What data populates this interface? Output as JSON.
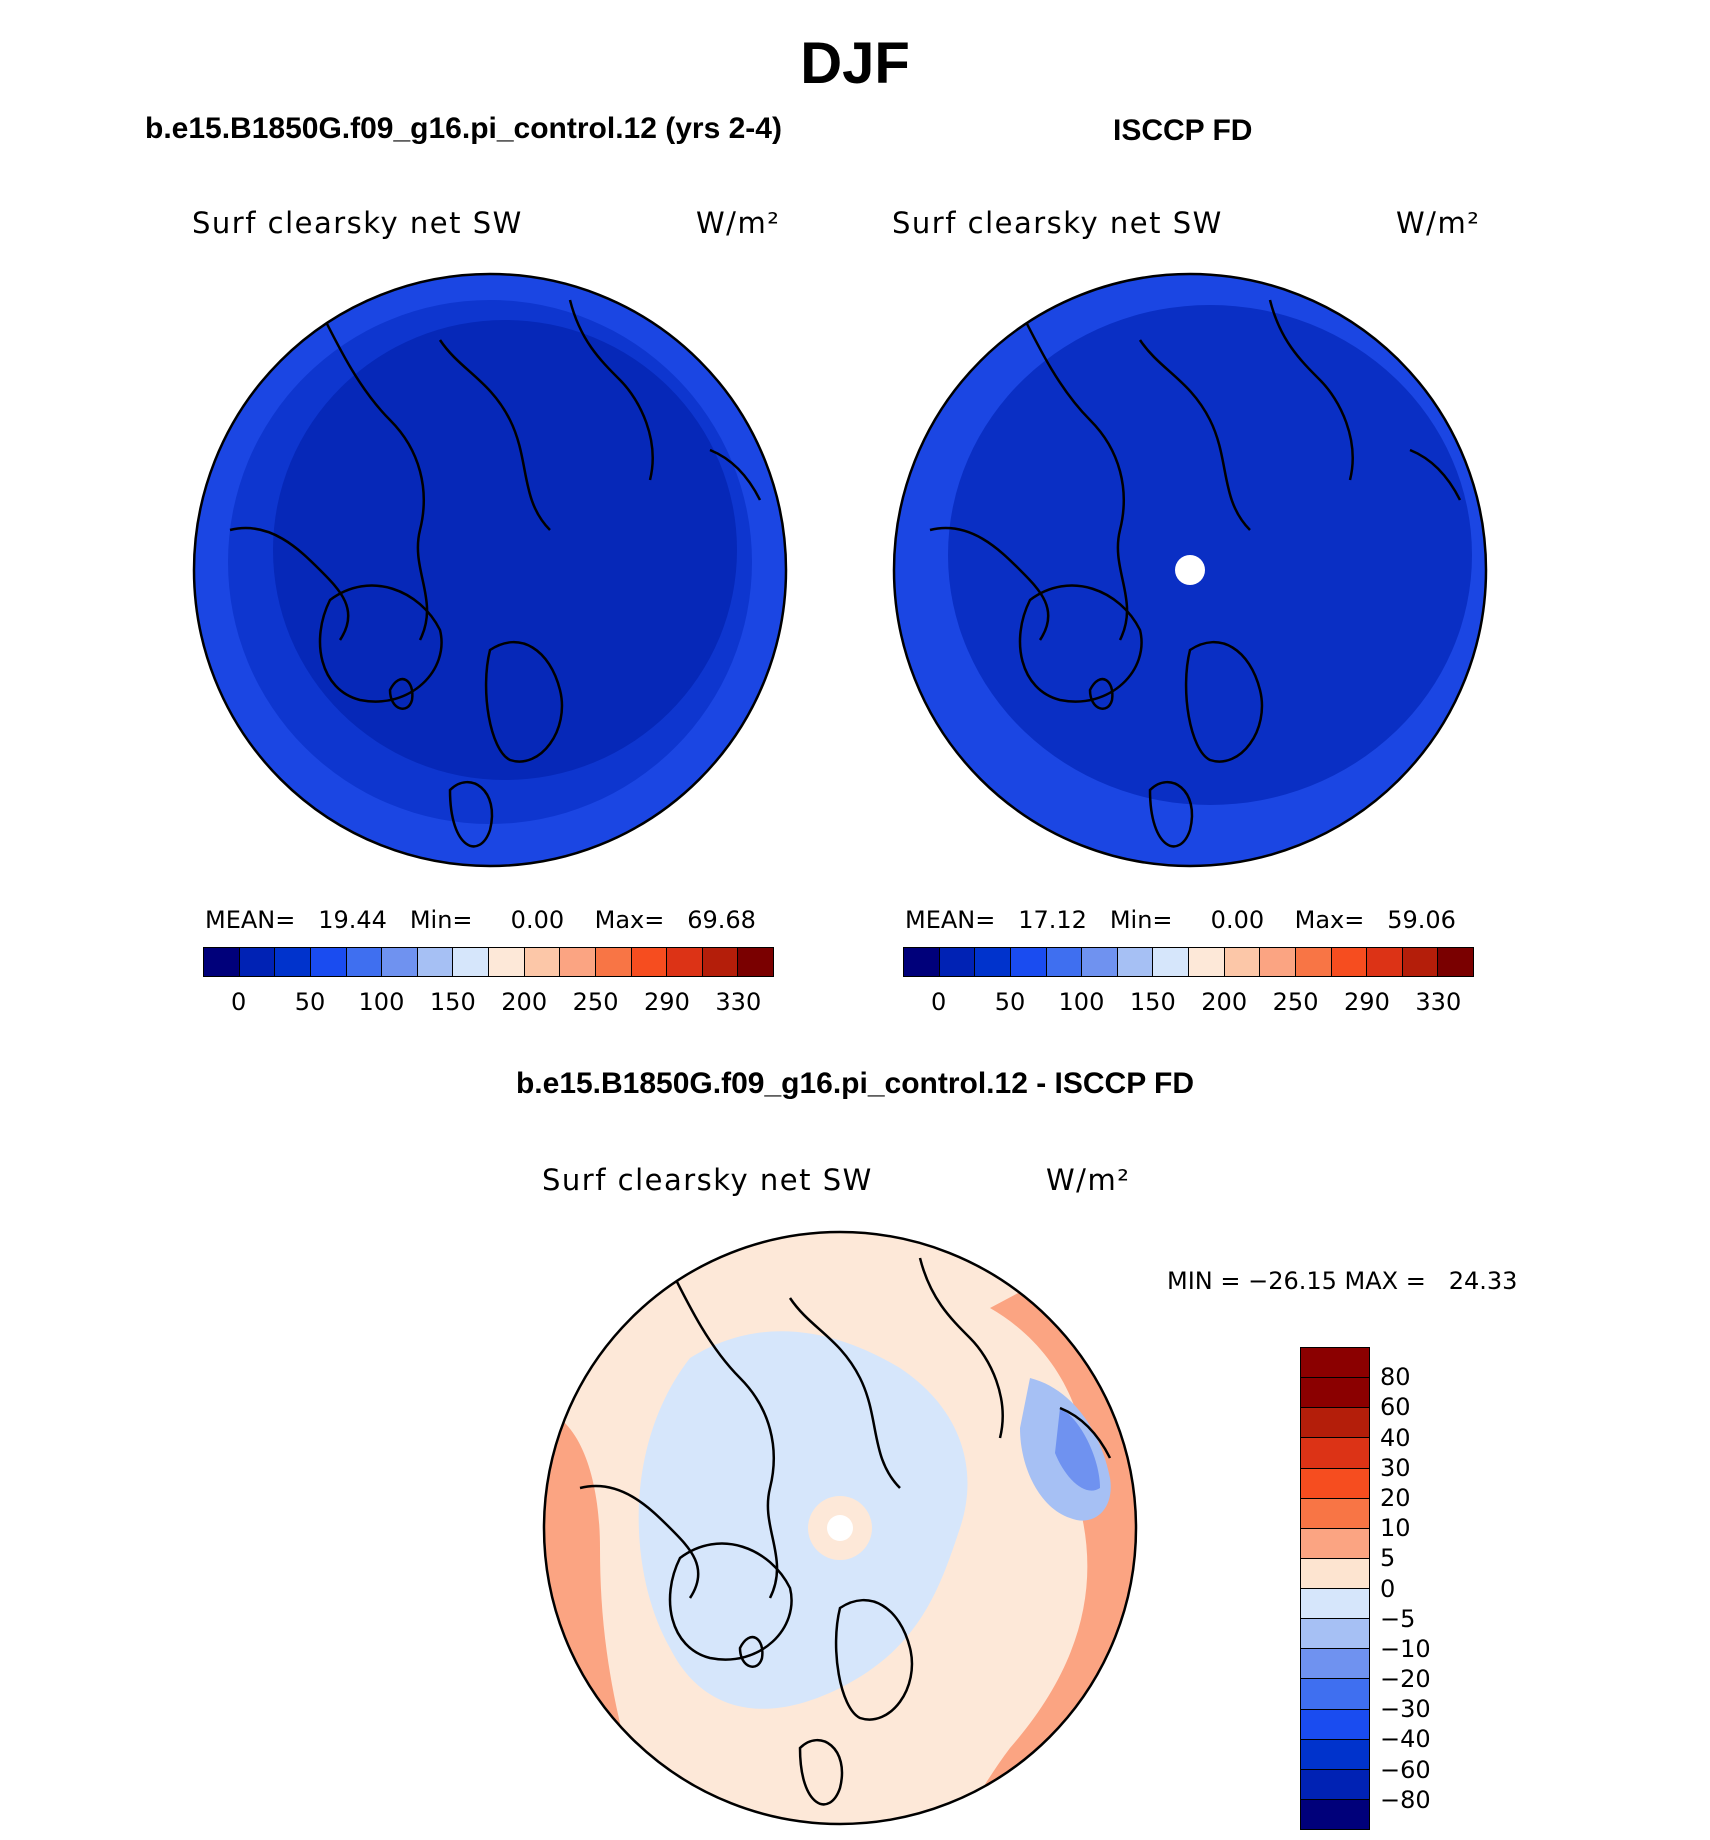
{
  "figure": {
    "season": "DJF",
    "left_case_title": "b.e15.B1850G.f09_g16.pi_control.12 (yrs 2-4)",
    "right_case_title": "ISCCP FD",
    "diff_case_title": "b.e15.B1850G.f09_g16.pi_control.12 - ISCCP FD"
  },
  "panels": {
    "model": {
      "variable": "Surf clearsky net SW",
      "units": "W/m²",
      "stats": "MEAN=   19.44   Min=     0.00    Max=   69.68"
    },
    "obs": {
      "variable": "Surf clearsky net SW",
      "units": "W/m²",
      "stats": "MEAN=   17.12   Min=     0.00    Max=   59.06"
    },
    "diff": {
      "variable": "Surf clearsky net SW",
      "units": "W/m²",
      "stats": "MIN = −26.15 MAX =   24.33"
    }
  },
  "colorbars": {
    "abs": {
      "labels": [
        "0",
        "50",
        "100",
        "150",
        "200",
        "250",
        "290",
        "330"
      ],
      "colors": [
        "#00007a",
        "#0022b4",
        "#0033cc",
        "#1a4cf0",
        "#3f6ff0",
        "#6f92f0",
        "#a6c0f4",
        "#d6e6fb",
        "#fde8d8",
        "#fcc7a8",
        "#fba482",
        "#f87545",
        "#f64d1f",
        "#dc3316",
        "#b41e0a",
        "#7a0000"
      ]
    },
    "diff": {
      "labels": [
        "80",
        "60",
        "40",
        "30",
        "20",
        "10",
        "5",
        "0",
        "−5",
        "−10",
        "−20",
        "−30",
        "−40",
        "−60",
        "−80"
      ],
      "colors": [
        "#8b0000",
        "#b41e0a",
        "#dc3316",
        "#f64d1f",
        "#f87545",
        "#fba482",
        "#fde4d0",
        "#d6e6fb",
        "#a6c0f4",
        "#6f92f0",
        "#3f6ff0",
        "#1a4cf0",
        "#0033cc",
        "#0022b4",
        "#00007a"
      ]
    }
  },
  "map_colors": {
    "model_outer": "#1b46e3",
    "model_mid": "#0e36cf",
    "model_inner": "#0628b8",
    "obs_outer": "#1b46e3",
    "obs_inner": "#0a2fc4",
    "missing_pole": "#ffffff",
    "diff_base": "#fde8d8",
    "diff_neg": "#d6e6fb",
    "diff_pos": "#fba482",
    "diff_strong_pos": "#f87545",
    "diff_neg2": "#a6c0f4",
    "diff_neg3": "#6f92f0"
  }
}
